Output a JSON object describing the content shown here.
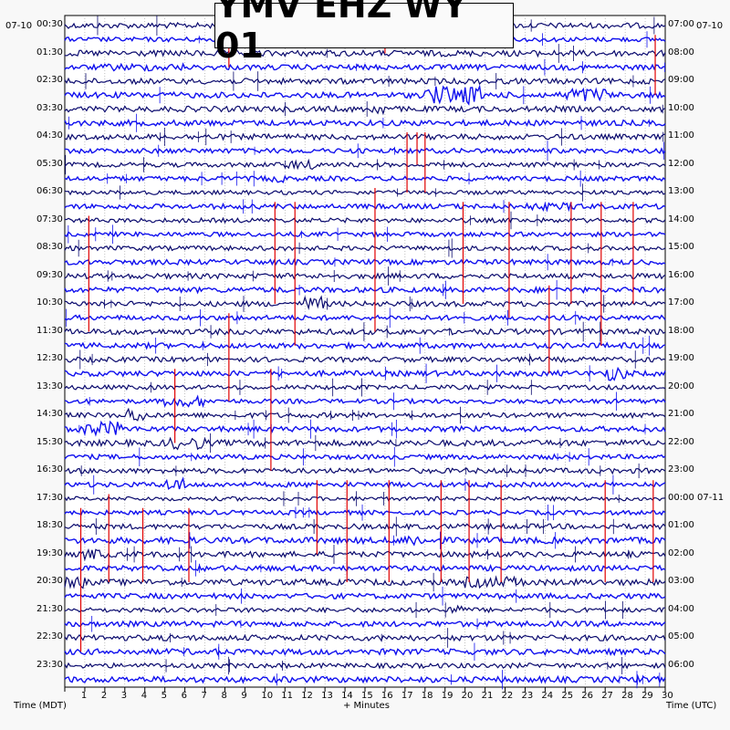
{
  "chart_data": {
    "type": "helicorder",
    "title": "YMV EHZ WY 01",
    "date_left": "07-10",
    "date_right": "07-10",
    "left_labels": [
      "00:30",
      "01:30",
      "02:30",
      "03:30",
      "04:30",
      "05:30",
      "06:30",
      "07:30",
      "08:30",
      "09:30",
      "10:30",
      "11:30",
      "12:30",
      "13:30",
      "14:30",
      "15:30",
      "16:30",
      "17:30",
      "18:30",
      "19:30",
      "20:30",
      "21:30",
      "22:30",
      "23:30"
    ],
    "right_labels": [
      "07:00",
      "08:00",
      "09:00",
      "10:00",
      "11:00",
      "12:00",
      "13:00",
      "14:00",
      "15:00",
      "16:00",
      "17:00",
      "18:00",
      "19:00",
      "20:00",
      "21:00",
      "22:00",
      "23:00",
      "00:00 07-11",
      "01:00",
      "02:00",
      "03:00",
      "04:00",
      "05:00",
      "06:00"
    ],
    "x_ticks": [
      "1",
      "2",
      "3",
      "4",
      "5",
      "6",
      "7",
      "8",
      "9",
      "10",
      "11",
      "12",
      "13",
      "14",
      "15",
      "16",
      "17",
      "18",
      "19",
      "20",
      "21",
      "22",
      "23",
      "24",
      "25",
      "26",
      "27",
      "28",
      "29",
      "30"
    ],
    "xlabel": "+ Minutes",
    "left_axis_label": "Time (MDT)",
    "right_axis_label": "Time (UTC)",
    "xlim": [
      0,
      30
    ],
    "line_count": 48,
    "minutes_per_line": 30,
    "trace_colors": [
      "#0a0a6e",
      "#1010ee"
    ],
    "event_color": "#e00000",
    "background": "#ffffff",
    "grid": true
  }
}
